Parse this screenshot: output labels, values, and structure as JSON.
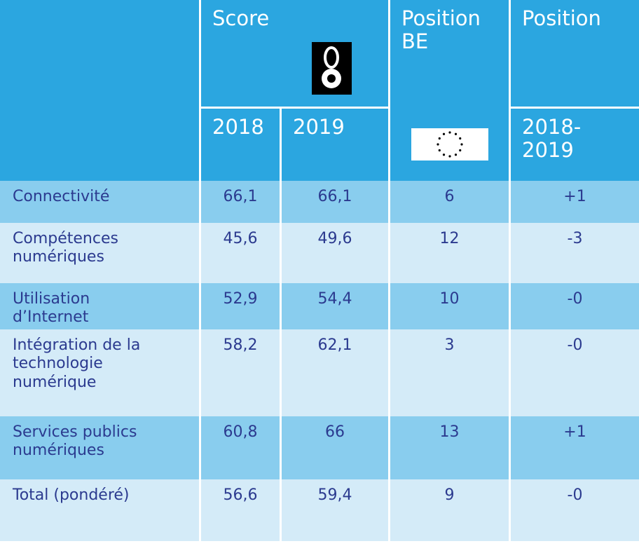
{
  "header": {
    "columns": [
      "Score",
      "Position BE",
      "Position"
    ],
    "subcolumns": [
      "2018",
      "2019",
      "2018-2019"
    ]
  },
  "table": {
    "rows": [
      [
        "Connectivité",
        "66,1",
        "66,1",
        "6",
        "+1"
      ],
      [
        "Compétences numériques",
        "45,6",
        "49,6",
        "12",
        "-3"
      ],
      [
        "Utilisation d’Internet",
        "52,9",
        "54,4",
        "10",
        "-0"
      ],
      [
        "Intégration de la technologie numérique",
        "58,2",
        "62,1",
        "3",
        "-0"
      ],
      [
        "Services publics numériques",
        "60,8",
        "66",
        "13",
        "+1"
      ],
      [
        "Total (pondéré)",
        "56,6",
        "59,4",
        "9",
        "-0"
      ]
    ]
  }
}
